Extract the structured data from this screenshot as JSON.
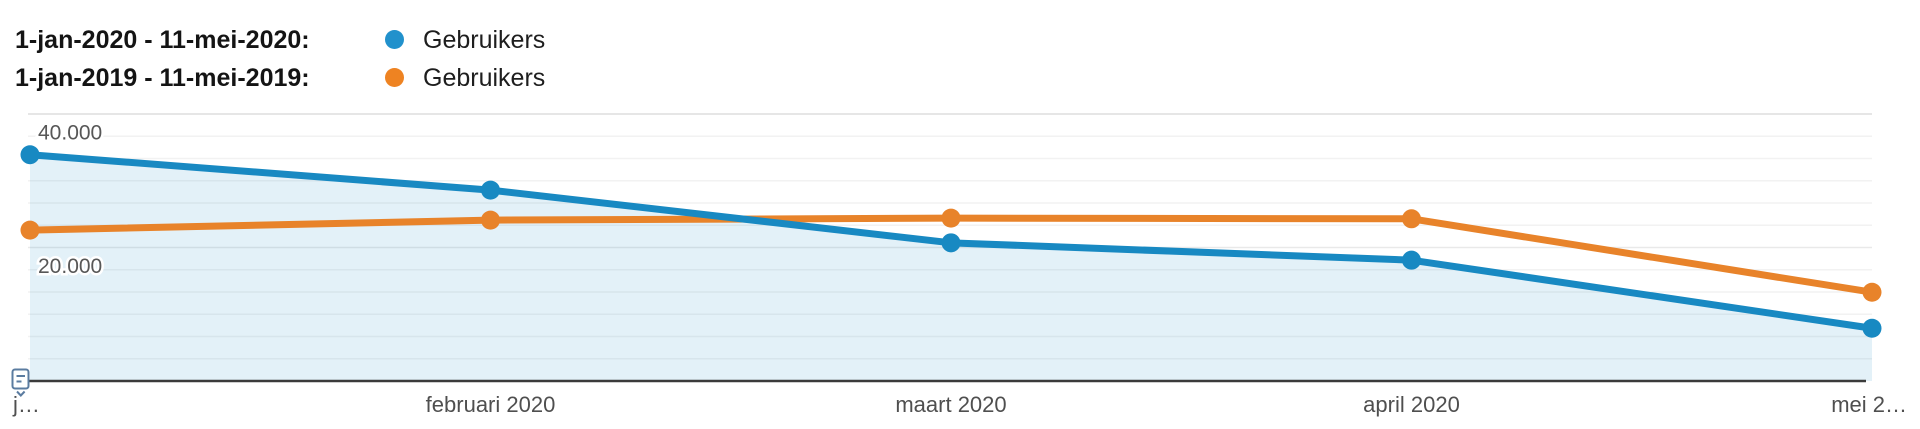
{
  "legend": {
    "rows": [
      {
        "range_label": "1-jan-2020 - 11-mei-2020:",
        "series_label": "Gebruikers",
        "color": "#2191cc"
      },
      {
        "range_label": "1-jan-2019 - 11-mei-2019:",
        "series_label": "Gebruikers",
        "color": "#ee8322"
      }
    ]
  },
  "chart_data": {
    "type": "line",
    "categories": [
      "j…",
      "februari 2020",
      "maart 2020",
      "april 2020",
      "mei 2…"
    ],
    "series": [
      {
        "name": "Gebruikers (1-jan-2020 - 11-mei-2020)",
        "color": "#1889c2",
        "area_fill": true,
        "fill_opacity": 0.12,
        "values": [
          33900,
          28600,
          20700,
          18100,
          7900
        ]
      },
      {
        "name": "Gebruikers (1-jan-2019 - 11-mei-2019)",
        "color": "#e8832a",
        "area_fill": false,
        "fill_opacity": 0,
        "values": [
          22600,
          24100,
          24400,
          24300,
          13300
        ]
      }
    ],
    "ylim": [
      0,
      40000
    ],
    "y_tick_labels": [
      {
        "value": 40000,
        "label": "40.000"
      },
      {
        "value": 20000,
        "label": "20.000"
      }
    ],
    "gridlines": {
      "minor_divisions": 12,
      "major_values": [
        40000,
        20000
      ]
    },
    "grid": "horizontal",
    "legend_position": "top-left",
    "colors": {
      "axis_line": "#3b3b3b",
      "major_gridline": "#dedede",
      "mid_gridline": "#e9e9e9",
      "minor_gridline": "#f2f2f2",
      "tick_label": "#4f4f4f",
      "y_label": "#575757",
      "annotation_icon": "#5b7ca0"
    }
  },
  "icons": {
    "annotations_expander": "annotations-expander-icon"
  }
}
